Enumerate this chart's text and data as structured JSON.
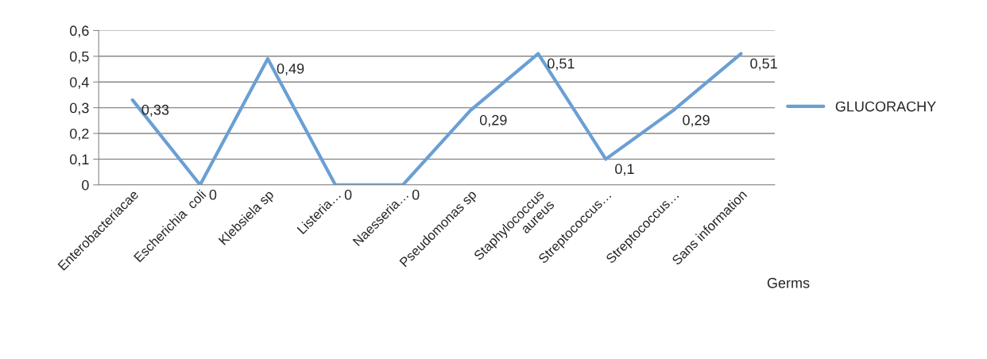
{
  "chart_data": {
    "type": "line",
    "xlabel": "Germs",
    "categories": [
      "Enterobacteriacae",
      "Escherichia  coli",
      "Klebsiela sp",
      "Listeria…",
      "Naesseria…",
      "Pseudomonas sp",
      "Staphylococcus aureus",
      "Streptococcus…",
      "Streptococcus…",
      "Sans information"
    ],
    "series": [
      {
        "name": "GLUCORACHY",
        "color": "#6a9fd4",
        "values": [
          0.33,
          0,
          0.49,
          0,
          0,
          0.29,
          0.51,
          0.1,
          0.29,
          0.51
        ],
        "value_labels": [
          "0,33",
          "0",
          "0,49",
          "0",
          "0",
          "0,29",
          "0,51",
          "0,1",
          "0,29",
          "0,51"
        ]
      }
    ],
    "ylim": [
      0,
      0.6
    ],
    "yticks": [
      {
        "value": 0,
        "label": "0"
      },
      {
        "value": 0.1,
        "label": "0,1"
      },
      {
        "value": 0.2,
        "label": "0,2"
      },
      {
        "value": 0.3,
        "label": "0,3"
      },
      {
        "value": 0.4,
        "label": "0,4"
      },
      {
        "value": 0.5,
        "label": "0,5"
      },
      {
        "value": 0.6,
        "label": "0,6"
      }
    ],
    "grid": "y",
    "legend": "right",
    "marker": "none",
    "line_style": "solid"
  }
}
